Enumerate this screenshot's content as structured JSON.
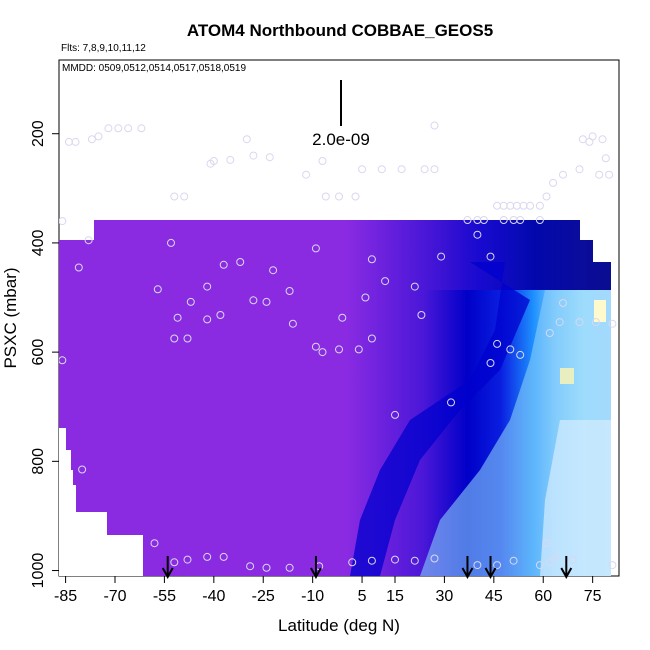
{
  "chart_data": {
    "type": "heatmap",
    "title": "ATOM4 Northbound COBBAE_GEOS5",
    "flights_note": "Flts: 7,8,9,10,11,12",
    "dates_note": "MMDD: 0509,0512,0514,0517,0518,0519",
    "scale_label": "2.0e-09",
    "xlabel": "Latitude (deg N)",
    "ylabel": "PSXC (mbar)",
    "xlim": [
      -87,
      83
    ],
    "ylim": [
      1010,
      65
    ],
    "y_reversed": true,
    "x_ticks": [
      "-85",
      "-70",
      "-55",
      "-40",
      "-25",
      "-10",
      "5",
      "15",
      "30",
      "45",
      "60",
      "75"
    ],
    "x_tick_values": [
      -85,
      -70,
      -55,
      -40,
      -25,
      -10,
      5,
      15,
      30,
      45,
      60,
      75
    ],
    "y_ticks": [
      "200",
      "400",
      "600",
      "800",
      "1000"
    ],
    "y_tick_values": [
      200,
      400,
      600,
      800,
      1000
    ],
    "colors": {
      "background_field": "#8a2be2",
      "deep_blue": "#0000cd",
      "medium_blue": "#1e90ff",
      "light_blue": "#bfefff",
      "highlight": "#fffacd",
      "missing": "#ffffff"
    },
    "arrow_latitudes": [
      -54,
      -9,
      37,
      44,
      67
    ],
    "observation_points": [
      {
        "x": -72,
        "y": 190
      },
      {
        "x": -69,
        "y": 190
      },
      {
        "x": -66,
        "y": 190
      },
      {
        "x": -62,
        "y": 190
      },
      {
        "x": -75,
        "y": 205
      },
      {
        "x": -77,
        "y": 210
      },
      {
        "x": -84,
        "y": 215
      },
      {
        "x": -82,
        "y": 215
      },
      {
        "x": -30,
        "y": 210
      },
      {
        "x": 27,
        "y": 185
      },
      {
        "x": -41,
        "y": 255
      },
      {
        "x": -40,
        "y": 250
      },
      {
        "x": -35,
        "y": 248
      },
      {
        "x": -28,
        "y": 240
      },
      {
        "x": -23,
        "y": 243
      },
      {
        "x": -12,
        "y": 275
      },
      {
        "x": -7,
        "y": 250
      },
      {
        "x": 5,
        "y": 265
      },
      {
        "x": 11,
        "y": 265
      },
      {
        "x": 17,
        "y": 265
      },
      {
        "x": 24,
        "y": 265
      },
      {
        "x": 27,
        "y": 265
      },
      {
        "x": -52,
        "y": 315
      },
      {
        "x": -49,
        "y": 315
      },
      {
        "x": -6,
        "y": 315
      },
      {
        "x": -2,
        "y": 315
      },
      {
        "x": 3,
        "y": 315
      },
      {
        "x": 37,
        "y": 358
      },
      {
        "x": 40,
        "y": 358
      },
      {
        "x": 42,
        "y": 358
      },
      {
        "x": 46,
        "y": 332
      },
      {
        "x": 48,
        "y": 332
      },
      {
        "x": 50,
        "y": 332
      },
      {
        "x": 52,
        "y": 332
      },
      {
        "x": 54,
        "y": 332
      },
      {
        "x": 56,
        "y": 332
      },
      {
        "x": 59,
        "y": 332
      },
      {
        "x": 61,
        "y": 315
      },
      {
        "x": 63,
        "y": 290
      },
      {
        "x": 66,
        "y": 275
      },
      {
        "x": 71,
        "y": 265
      },
      {
        "x": 77,
        "y": 275
      },
      {
        "x": 80,
        "y": 275
      },
      {
        "x": 79,
        "y": 245
      },
      {
        "x": 74,
        "y": 215
      },
      {
        "x": 75,
        "y": 205
      },
      {
        "x": 72,
        "y": 210
      },
      {
        "x": 78,
        "y": 210
      },
      {
        "x": 48,
        "y": 358
      },
      {
        "x": 51,
        "y": 358
      },
      {
        "x": 53,
        "y": 358
      },
      {
        "x": 59,
        "y": 358
      },
      {
        "x": 40,
        "y": 385
      },
      {
        "x": -86,
        "y": 360
      },
      {
        "x": -78,
        "y": 395
      },
      {
        "x": -53,
        "y": 400
      },
      {
        "x": -9,
        "y": 410
      },
      {
        "x": 8,
        "y": 430
      },
      {
        "x": 29,
        "y": 425
      },
      {
        "x": 44,
        "y": 425
      },
      {
        "x": -32,
        "y": 435
      },
      {
        "x": -37,
        "y": 440
      },
      {
        "x": -22,
        "y": 450
      },
      {
        "x": -81,
        "y": 445
      },
      {
        "x": -57,
        "y": 485
      },
      {
        "x": -42,
        "y": 480
      },
      {
        "x": -17,
        "y": 488
      },
      {
        "x": 12,
        "y": 470
      },
      {
        "x": 21,
        "y": 480
      },
      {
        "x": 6,
        "y": 500
      },
      {
        "x": -47,
        "y": 508
      },
      {
        "x": -28,
        "y": 505
      },
      {
        "x": -24,
        "y": 508
      },
      {
        "x": 66,
        "y": 510
      },
      {
        "x": 23,
        "y": 532
      },
      {
        "x": -51,
        "y": 537
      },
      {
        "x": -42,
        "y": 540
      },
      {
        "x": -38,
        "y": 532
      },
      {
        "x": -16,
        "y": 548
      },
      {
        "x": -1,
        "y": 537
      },
      {
        "x": 65,
        "y": 545
      },
      {
        "x": 71,
        "y": 545
      },
      {
        "x": 76,
        "y": 545
      },
      {
        "x": 81,
        "y": 548
      },
      {
        "x": 62,
        "y": 565
      },
      {
        "x": -52,
        "y": 575
      },
      {
        "x": -48,
        "y": 575
      },
      {
        "x": 8,
        "y": 575
      },
      {
        "x": -9,
        "y": 590
      },
      {
        "x": -7,
        "y": 600
      },
      {
        "x": -2,
        "y": 595
      },
      {
        "x": 4,
        "y": 595
      },
      {
        "x": 46,
        "y": 585
      },
      {
        "x": 50,
        "y": 595
      },
      {
        "x": 53,
        "y": 605
      },
      {
        "x": 44,
        "y": 620
      },
      {
        "x": -86,
        "y": 615
      },
      {
        "x": 32,
        "y": 692
      },
      {
        "x": 15,
        "y": 715
      },
      {
        "x": -80,
        "y": 815
      },
      {
        "x": -58,
        "y": 950
      },
      {
        "x": 61,
        "y": 950
      },
      {
        "x": -42,
        "y": 975
      },
      {
        "x": -37,
        "y": 975
      },
      {
        "x": -48,
        "y": 980
      },
      {
        "x": -52,
        "y": 985
      },
      {
        "x": -29,
        "y": 992
      },
      {
        "x": -24,
        "y": 995
      },
      {
        "x": -17,
        "y": 995
      },
      {
        "x": -8,
        "y": 992
      },
      {
        "x": 2,
        "y": 985
      },
      {
        "x": 8,
        "y": 982
      },
      {
        "x": 15,
        "y": 980
      },
      {
        "x": 21,
        "y": 982
      },
      {
        "x": 27,
        "y": 978
      },
      {
        "x": 40,
        "y": 990
      },
      {
        "x": 46,
        "y": 990
      },
      {
        "x": 51,
        "y": 982
      },
      {
        "x": 59,
        "y": 990
      },
      {
        "x": 62,
        "y": 985
      },
      {
        "x": 64,
        "y": 975
      },
      {
        "x": 69,
        "y": 980
      },
      {
        "x": 81,
        "y": 990
      }
    ]
  }
}
